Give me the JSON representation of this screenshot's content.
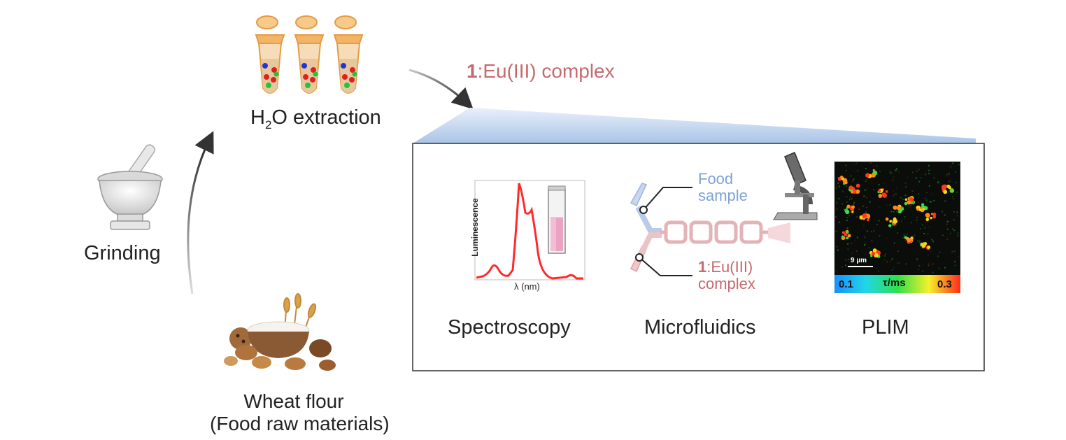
{
  "labels": {
    "extraction_prefix": "H",
    "extraction_sub": "2",
    "extraction_suffix": "O extraction",
    "complex_bold": "1",
    "complex_rest": ":Eu(III) complex",
    "grinding": "Grinding",
    "raw_line1": "Wheat flour",
    "raw_line2": "(Food raw materials)",
    "spectroscopy": "Spectroscopy",
    "microfluidics": "Microfluidics",
    "plim": "PLIM"
  },
  "spectrum": {
    "ylabel": "Luminescence",
    "xlabel": "λ (nm)"
  },
  "microfluidics": {
    "food_line1": "Food",
    "food_line2": "sample",
    "complex_bold": "1",
    "complex_rest": ":Eu(III)",
    "complex_line2": "complex"
  },
  "plim": {
    "scale": "9 µm",
    "cbar_min": "0.1",
    "cbar_title": "τ/ms",
    "cbar_max": "0.3"
  },
  "colors": {
    "accent_red": "#c56a6e",
    "accent_blue": "#7ea3d6",
    "tube_orange": "#f2b468",
    "spectrum_red": "#ff2a2a"
  },
  "icons": [
    "microcentrifuge-tube-icon",
    "mortar-pestle-icon",
    "flour-bowl-icon",
    "cuvette-icon",
    "microscope-icon",
    "arrow-icon"
  ]
}
